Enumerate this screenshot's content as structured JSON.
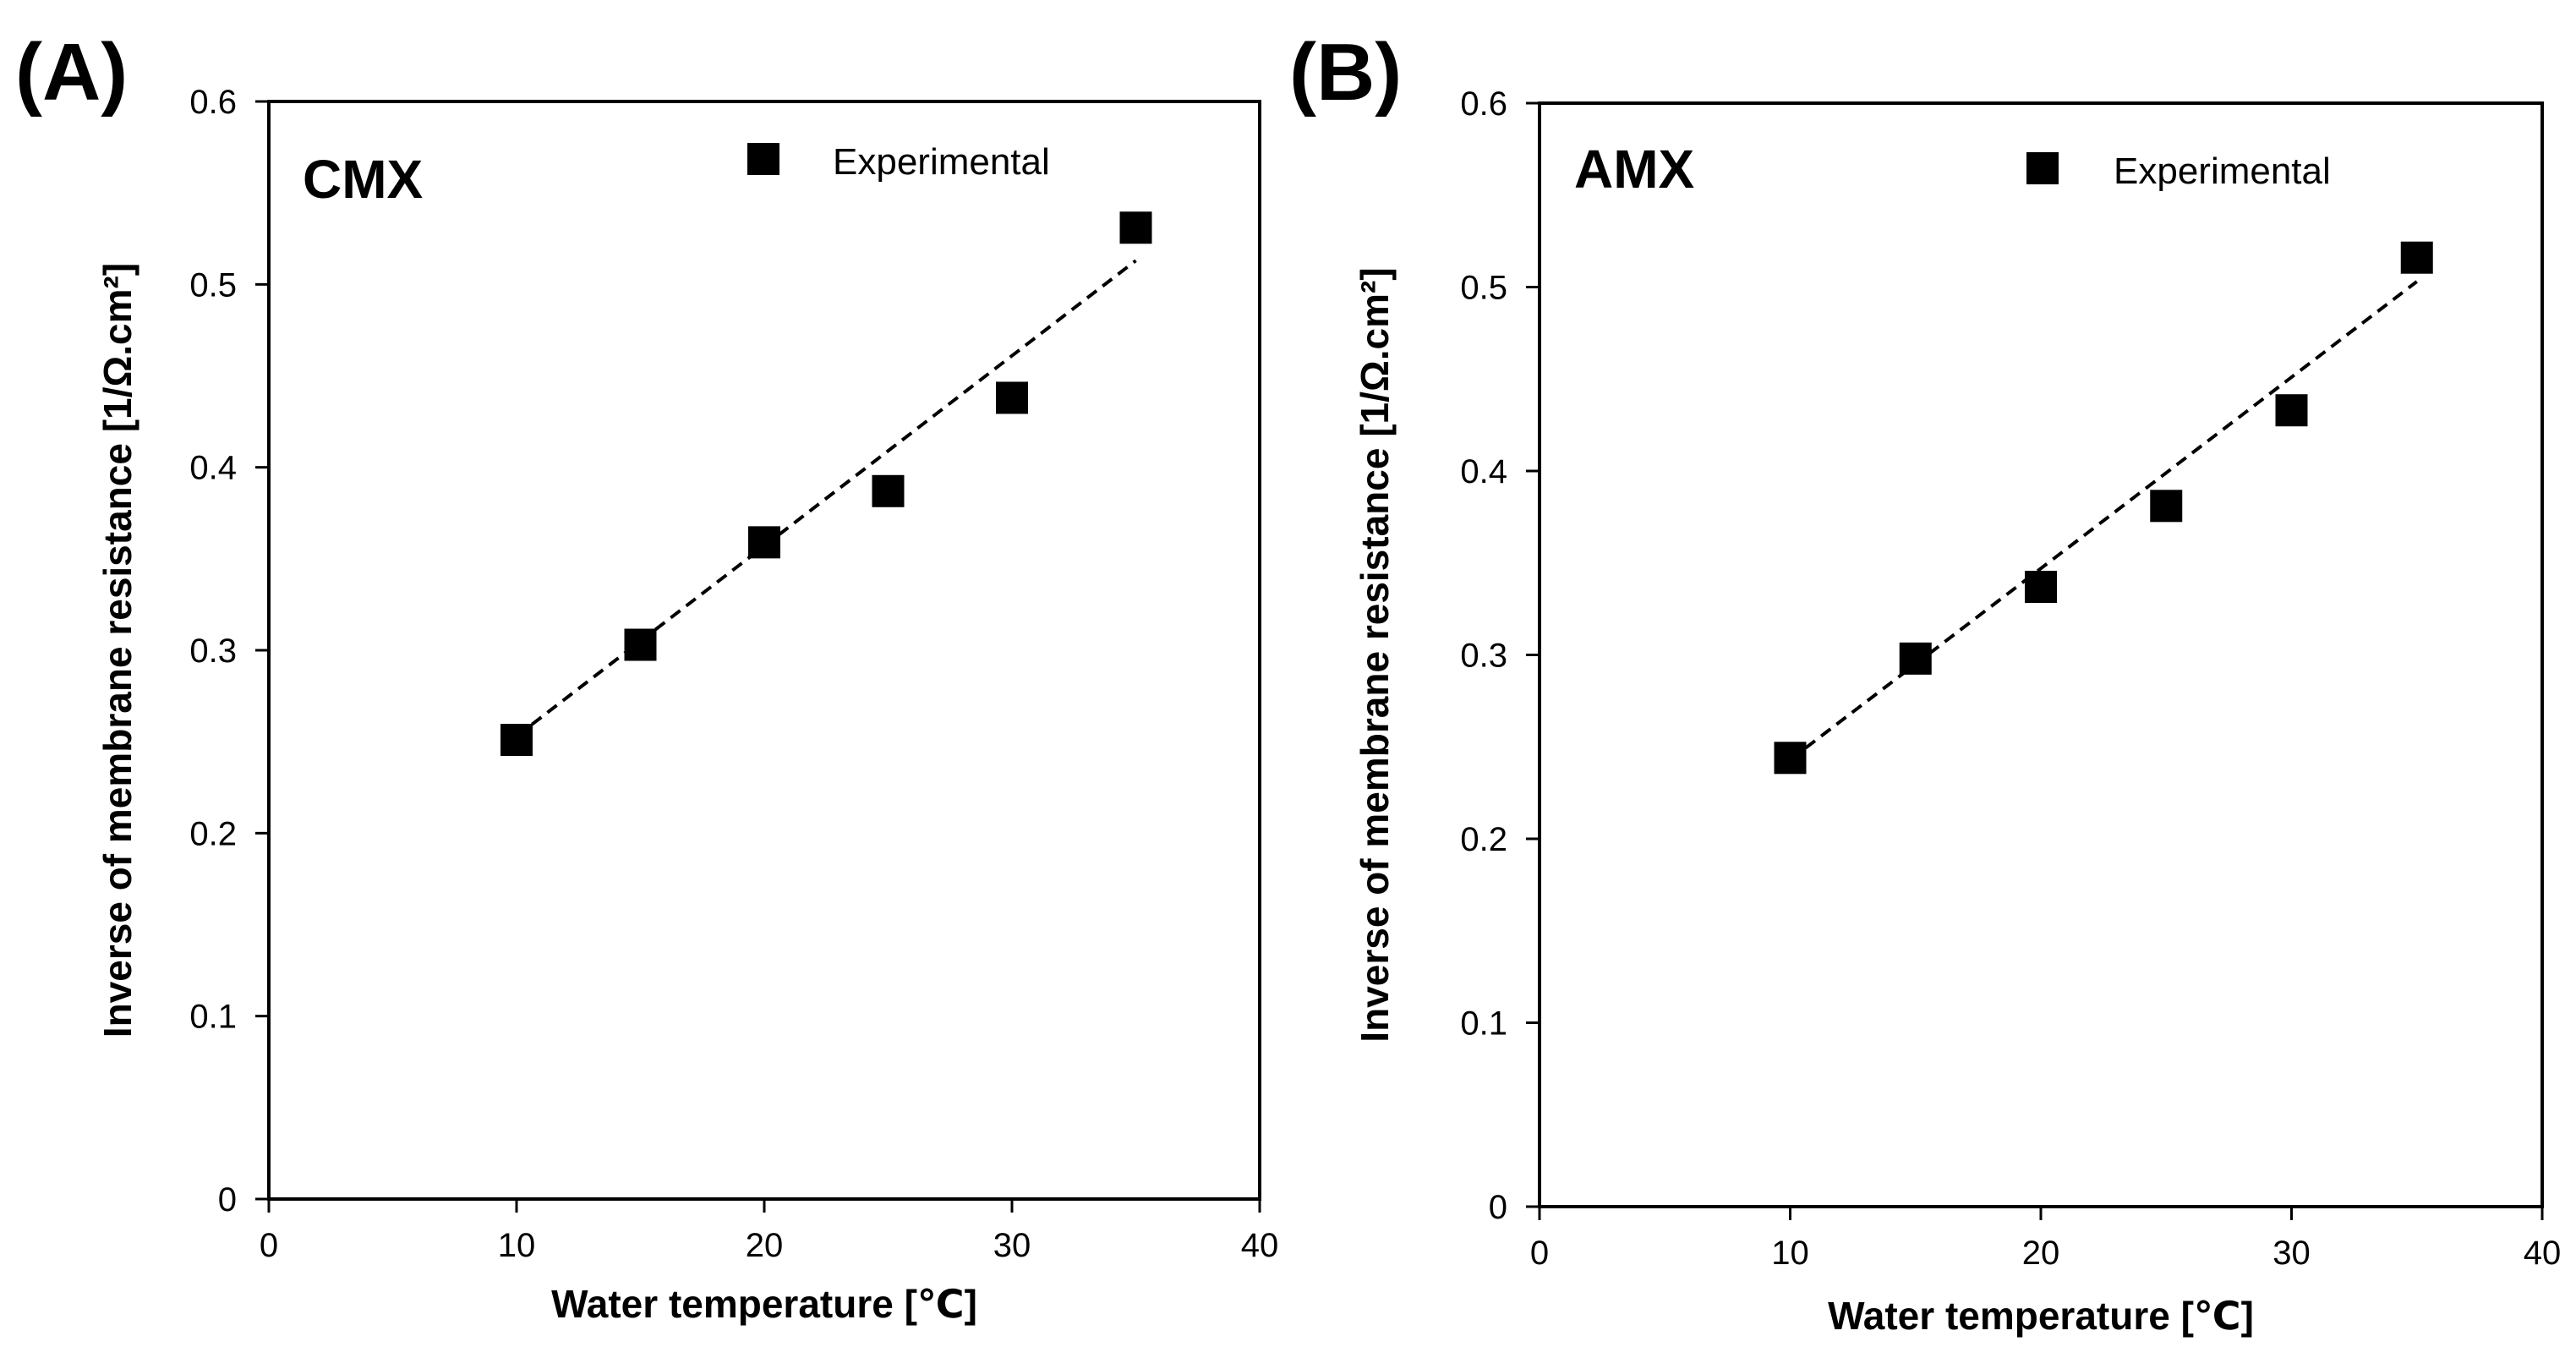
{
  "chart_data": [
    {
      "type": "scatter",
      "panel_label": "(A)",
      "inset_label": "CMX",
      "title": "",
      "xlabel": "Water temperature [℃]",
      "ylabel": "Inverse of membrane resistance [1/Ω.cm²]",
      "xlim": [
        0,
        40
      ],
      "ylim": [
        0,
        0.6
      ],
      "xticks": [
        "0",
        "10",
        "20",
        "30",
        "40"
      ],
      "yticks": [
        "0",
        "0.1",
        "0.2",
        "0.3",
        "0.4",
        "0.5",
        "0.6"
      ],
      "grid": false,
      "legend": {
        "entries": [
          "Experimental"
        ],
        "position": "top-right"
      },
      "series": [
        {
          "name": "Experimental",
          "marker": "square",
          "x": [
            10,
            15,
            20,
            25,
            30,
            35
          ],
          "y": [
            0.251,
            0.303,
            0.359,
            0.387,
            0.438,
            0.531
          ]
        }
      ],
      "fit_line": {
        "style": "dashed",
        "x": [
          10,
          35
        ],
        "y": [
          0.253,
          0.513
        ]
      }
    },
    {
      "type": "scatter",
      "panel_label": "(B)",
      "inset_label": "AMX",
      "title": "",
      "xlabel": "Water temperature [℃]",
      "ylabel": "Inverse of membrane resistance [1/Ω.cm²]",
      "xlim": [
        0,
        40
      ],
      "ylim": [
        0,
        0.6
      ],
      "xticks": [
        "0",
        "10",
        "20",
        "30",
        "40"
      ],
      "yticks": [
        "0",
        "0.1",
        "0.2",
        "0.3",
        "0.4",
        "0.5",
        "0.6"
      ],
      "grid": false,
      "legend": {
        "entries": [
          "Experimental"
        ],
        "position": "top-right"
      },
      "series": [
        {
          "name": "Experimental",
          "marker": "square",
          "x": [
            10,
            15,
            20,
            25,
            30,
            35
          ],
          "y": [
            0.244,
            0.298,
            0.337,
            0.381,
            0.433,
            0.516
          ]
        }
      ],
      "fit_line": {
        "style": "dashed",
        "x": [
          10,
          35
        ],
        "y": [
          0.243,
          0.503
        ]
      }
    }
  ],
  "colors": {
    "marker": "#000000",
    "axis": "#000000",
    "background": "#ffffff"
  }
}
